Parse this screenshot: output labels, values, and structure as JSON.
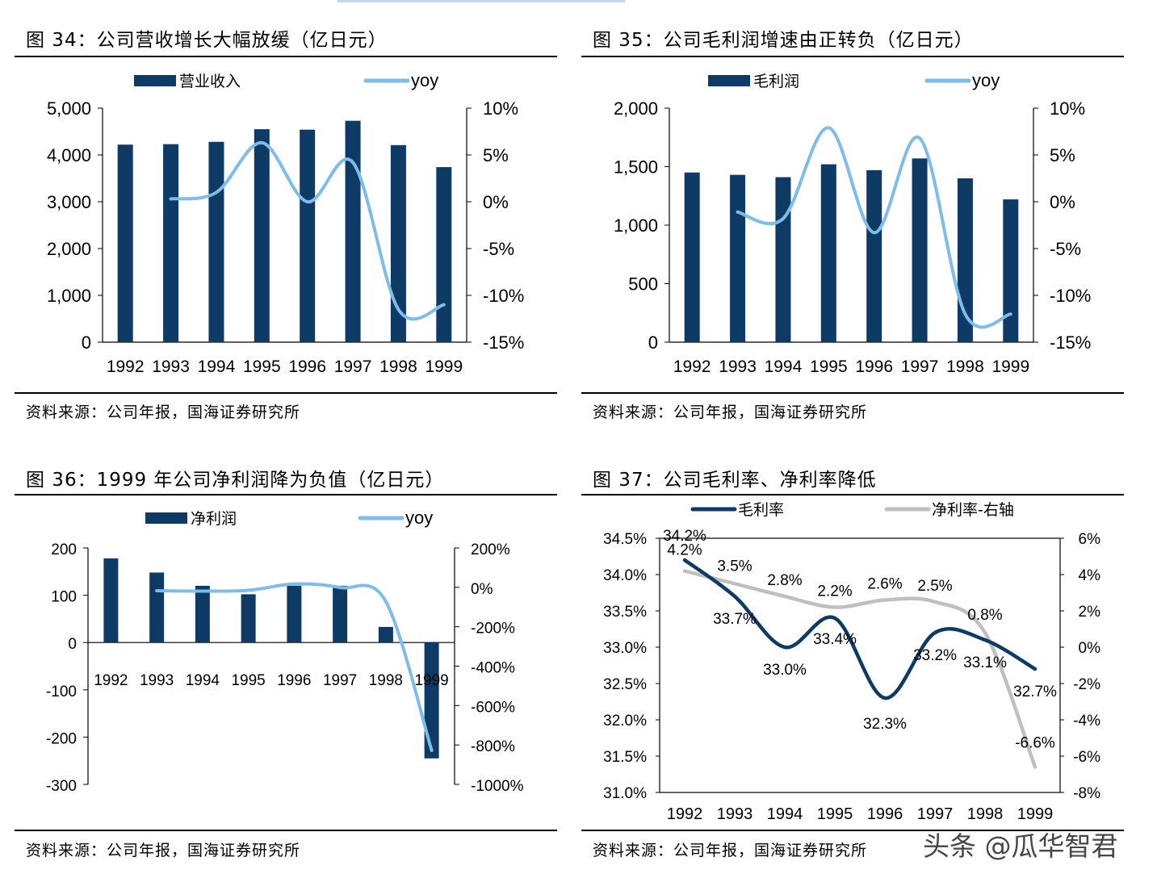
{
  "colors": {
    "bar": "#0d3b66",
    "line_light": "#7dbde8",
    "line_dark": "#0d3b66",
    "line_gray": "#bfbfbf"
  },
  "panels": [
    {
      "title": "图 34：公司营收增长大幅放缓（亿日元）",
      "source": "资料来源：公司年报，国海证券研究所",
      "chart_data": {
        "type": "bar",
        "categories": [
          "1992",
          "1993",
          "1994",
          "1995",
          "1996",
          "1997",
          "1998",
          "1999"
        ],
        "series": [
          {
            "name": "营业收入",
            "type": "bar",
            "axis": "left",
            "values": [
              4220,
              4230,
              4280,
              4550,
              4540,
              4730,
              4210,
              3740
            ]
          },
          {
            "name": "yoy",
            "type": "line",
            "axis": "right",
            "values": [
              null,
              0.3,
              1.0,
              6.3,
              0.0,
              4.2,
              -11.5,
              -11.0
            ]
          }
        ],
        "left_ticks": [
          "5,000",
          "4,000",
          "3,000",
          "2,000",
          "1,000",
          "0"
        ],
        "right_ticks": [
          "10%",
          "5%",
          "0%",
          "-5%",
          "-10%",
          "-15%"
        ],
        "ylim_left": [
          0,
          5000
        ],
        "ylim_right": [
          -15,
          10
        ],
        "legend": "top"
      }
    },
    {
      "title": "图 35：公司毛利润增速由正转负（亿日元）",
      "source": "资料来源：公司年报，国海证券研究所",
      "chart_data": {
        "type": "bar",
        "categories": [
          "1992",
          "1993",
          "1994",
          "1995",
          "1996",
          "1997",
          "1998",
          "1999"
        ],
        "series": [
          {
            "name": "毛利润",
            "type": "bar",
            "axis": "left",
            "values": [
              1450,
              1430,
              1410,
              1520,
              1470,
              1570,
              1400,
              1220
            ]
          },
          {
            "name": "yoy",
            "type": "line",
            "axis": "right",
            "values": [
              null,
              -1.1,
              -1.8,
              7.9,
              -3.3,
              6.8,
              -12.0,
              -12.0
            ]
          }
        ],
        "left_ticks": [
          "2,000",
          "1,500",
          "1,000",
          "500",
          "0"
        ],
        "right_ticks": [
          "10%",
          "5%",
          "0%",
          "-5%",
          "-10%",
          "-15%"
        ],
        "ylim_left": [
          0,
          2000
        ],
        "ylim_right": [
          -15,
          10
        ],
        "legend": "top"
      }
    },
    {
      "title": "图 36：1999 年公司净利润降为负值（亿日元）",
      "source": "资料来源：公司年报，国海证券研究所",
      "chart_data": {
        "type": "bar",
        "categories": [
          "1992",
          "1993",
          "1994",
          "1995",
          "1996",
          "1997",
          "1998",
          "1999"
        ],
        "series": [
          {
            "name": "净利润",
            "type": "bar",
            "axis": "left",
            "values": [
              178,
              148,
              120,
              102,
              120,
              120,
              33,
              -245
            ]
          },
          {
            "name": "yoy",
            "type": "line",
            "axis": "right",
            "values": [
              null,
              -17,
              -19,
              -15,
              17,
              -1,
              -72,
              -828
            ]
          }
        ],
        "left_ticks": [
          "200",
          "100",
          "0",
          "-100",
          "-200",
          "-300"
        ],
        "right_ticks": [
          "200%",
          "0%",
          "-200%",
          "-400%",
          "-600%",
          "-800%",
          "-1000%"
        ],
        "ylim_left": [
          -300,
          200
        ],
        "ylim_right": [
          -1000,
          200
        ],
        "legend": "top"
      }
    },
    {
      "title": "图 37：公司毛利率、净利率降低",
      "source": "资料来源：公司年报，国海证券研究所",
      "chart_data": {
        "type": "line",
        "categories": [
          "1992",
          "1993",
          "1994",
          "1995",
          "1996",
          "1997",
          "1998",
          "1999"
        ],
        "series": [
          {
            "name": "毛利率",
            "axis": "left",
            "values": [
              34.2,
              33.7,
              33.0,
              33.4,
              32.3,
              33.2,
              33.1,
              32.7
            ],
            "labels": [
              "34.2%",
              "33.7%",
              "33.0%",
              "33.4%",
              "32.3%",
              "33.2%",
              "33.1%",
              "32.7%"
            ]
          },
          {
            "name": "净利率-右轴",
            "axis": "right",
            "values": [
              4.2,
              3.5,
              2.8,
              2.2,
              2.6,
              2.5,
              0.8,
              -6.6
            ],
            "labels": [
              "4.2%",
              "3.5%",
              "2.8%",
              "2.2%",
              "2.6%",
              "2.5%",
              "0.8%",
              "-6.6%"
            ]
          }
        ],
        "left_ticks": [
          "34.5%",
          "34.0%",
          "33.5%",
          "33.0%",
          "32.5%",
          "32.0%",
          "31.5%",
          "31.0%"
        ],
        "right_ticks": [
          "6%",
          "4%",
          "2%",
          "0%",
          "-2%",
          "-4%",
          "-6%",
          "-8%"
        ],
        "ylim_left": [
          31.0,
          34.5
        ],
        "ylim_right": [
          -8,
          6
        ],
        "legend": "top"
      }
    }
  ],
  "watermark": "头条 @瓜华智君"
}
